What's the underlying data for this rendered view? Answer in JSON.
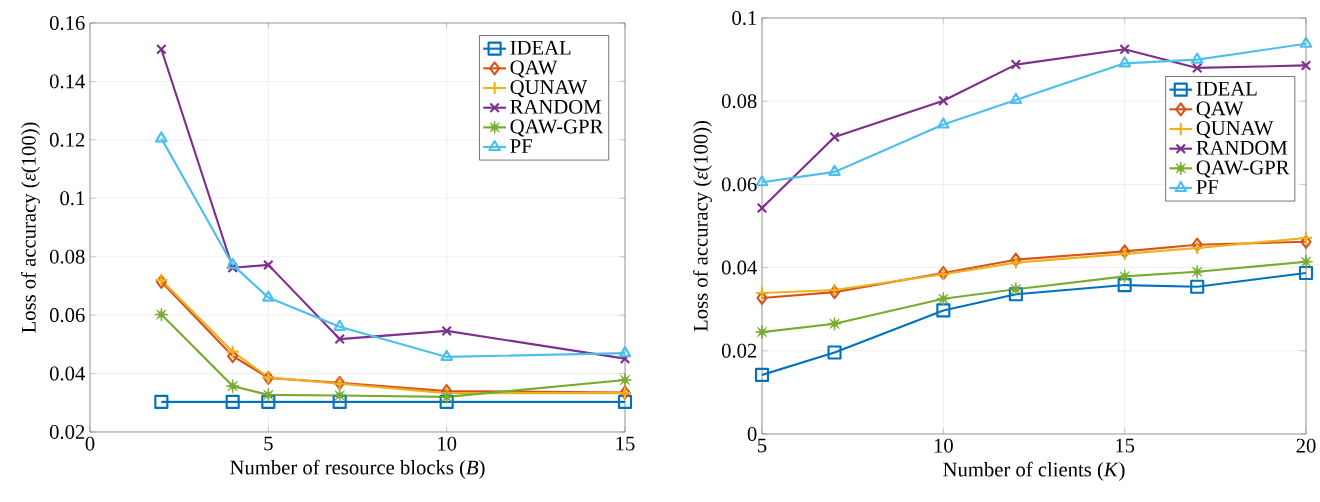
{
  "chart_data": [
    {
      "type": "line",
      "xlabel": "Number of resource blocks (*B*)",
      "ylabel": "Loss of accuracy (*ε*(100))",
      "xlim": [
        0,
        15
      ],
      "xticks": [
        0,
        5,
        10,
        15
      ],
      "ylim": [
        0.02,
        0.16
      ],
      "yticks": [
        0.02,
        0.04,
        0.06,
        0.08,
        0.1,
        0.12,
        0.14,
        0.16
      ],
      "grid": true,
      "legend": "top right",
      "line_style": "solid",
      "x": [
        2,
        4,
        5,
        7,
        10,
        15
      ],
      "series": [
        {
          "name": "IDEAL",
          "color": "#0072bd",
          "marker": "square",
          "values": [
            0.0303,
            0.0303,
            0.0303,
            0.0303,
            0.0303,
            0.0303
          ]
        },
        {
          "name": "QAW",
          "color": "#d95319",
          "marker": "diamond",
          "values": [
            0.0714,
            0.046,
            0.0385,
            0.0368,
            0.034,
            0.0335
          ]
        },
        {
          "name": "QUNAW",
          "color": "#edb120",
          "marker": "plus",
          "values": [
            0.072,
            0.0475,
            0.0387,
            0.0365,
            0.0333,
            0.0333
          ]
        },
        {
          "name": "RANDOM",
          "color": "#7e2f8e",
          "marker": "cross",
          "values": [
            0.151,
            0.0762,
            0.0772,
            0.0518,
            0.0546,
            0.0451
          ]
        },
        {
          "name": "QAW-GPR",
          "color": "#77ac30",
          "marker": "star",
          "values": [
            0.0602,
            0.0357,
            0.0327,
            0.0325,
            0.032,
            0.0378
          ]
        },
        {
          "name": "PF",
          "color": "#4dbeee",
          "marker": "triangle",
          "values": [
            0.1205,
            0.0772,
            0.066,
            0.056,
            0.0457,
            0.047
          ]
        }
      ]
    },
    {
      "type": "line",
      "xlabel": "Number of clients (*K*)",
      "ylabel": "Loss of accuracy (*ε*(100))",
      "xlim": [
        5,
        20
      ],
      "xticks": [
        5,
        10,
        15,
        20
      ],
      "ylim": [
        0,
        0.1
      ],
      "yticks": [
        0,
        0.02,
        0.04,
        0.06,
        0.08,
        0.1
      ],
      "grid": true,
      "legend": "right",
      "line_style": "solid",
      "x": [
        5,
        7,
        10,
        12,
        15,
        17,
        20
      ],
      "series": [
        {
          "name": "IDEAL",
          "color": "#0072bd",
          "marker": "square",
          "values": [
            0.0142,
            0.0196,
            0.0297,
            0.0336,
            0.0358,
            0.0354,
            0.0387
          ]
        },
        {
          "name": "QAW",
          "color": "#d95319",
          "marker": "diamond",
          "values": [
            0.0327,
            0.0341,
            0.0387,
            0.0419,
            0.0439,
            0.0455,
            0.0462
          ]
        },
        {
          "name": "QUNAW",
          "color": "#edb120",
          "marker": "plus",
          "values": [
            0.0339,
            0.0346,
            0.0384,
            0.0412,
            0.0433,
            0.0447,
            0.0471
          ]
        },
        {
          "name": "RANDOM",
          "color": "#7e2f8e",
          "marker": "cross",
          "values": [
            0.0543,
            0.0714,
            0.0801,
            0.0888,
            0.0925,
            0.088,
            0.0886
          ]
        },
        {
          "name": "QAW-GPR",
          "color": "#77ac30",
          "marker": "star",
          "values": [
            0.0245,
            0.0265,
            0.0325,
            0.0348,
            0.0379,
            0.039,
            0.0414
          ]
        },
        {
          "name": "PF",
          "color": "#4dbeee",
          "marker": "triangle",
          "values": [
            0.0605,
            0.063,
            0.0744,
            0.0803,
            0.0891,
            0.09,
            0.0938
          ]
        }
      ]
    }
  ]
}
